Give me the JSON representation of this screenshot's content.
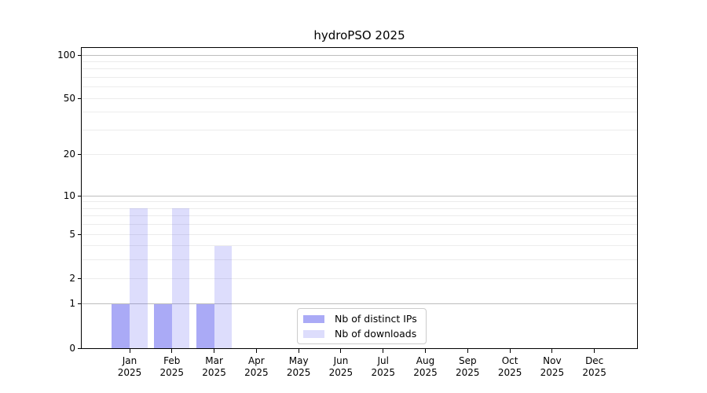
{
  "window": {
    "background": "#ffffff"
  },
  "chart_data": {
    "type": "bar",
    "title": "hydroPSO 2025",
    "categories": [
      "Jan 2025",
      "Feb 2025",
      "Mar 2025",
      "Apr 2025",
      "May 2025",
      "Jun 2025",
      "Jul 2025",
      "Aug 2025",
      "Sep 2025",
      "Oct 2025",
      "Nov 2025",
      "Dec 2025"
    ],
    "series": [
      {
        "name": "Nb of distinct IPs",
        "color": "#5655ee",
        "alpha": 0.5,
        "solid_color": "#aaa9f7",
        "values": [
          1,
          1,
          1,
          0,
          0,
          0,
          0,
          0,
          0,
          0,
          0,
          0
        ]
      },
      {
        "name": "Nb of downloads",
        "color": "#5655ee",
        "alpha": 0.2,
        "solid_color": "#dddcfa",
        "values": [
          8,
          8,
          4,
          0,
          0,
          0,
          0,
          0,
          0,
          0,
          0,
          0
        ]
      }
    ],
    "xlabel": "",
    "ylabel": "",
    "yscale": "log1p",
    "yticks": [
      0,
      1,
      2,
      5,
      10,
      20,
      50,
      100
    ],
    "ylim": [
      0,
      112
    ],
    "grid": {
      "on": true,
      "major_values": [
        1,
        10,
        100
      ],
      "minor_values": [
        2,
        3,
        4,
        5,
        6,
        7,
        8,
        9,
        20,
        30,
        40,
        50,
        60,
        70,
        80,
        90
      ],
      "major_color": "#bdbdbd",
      "minor_color": "#ececec"
    },
    "legend": {
      "position": "inside-bottom-center",
      "border_color": "#cccccc",
      "background": "#ffffff"
    },
    "axis_color": "#000000",
    "text_color": "#000000"
  }
}
